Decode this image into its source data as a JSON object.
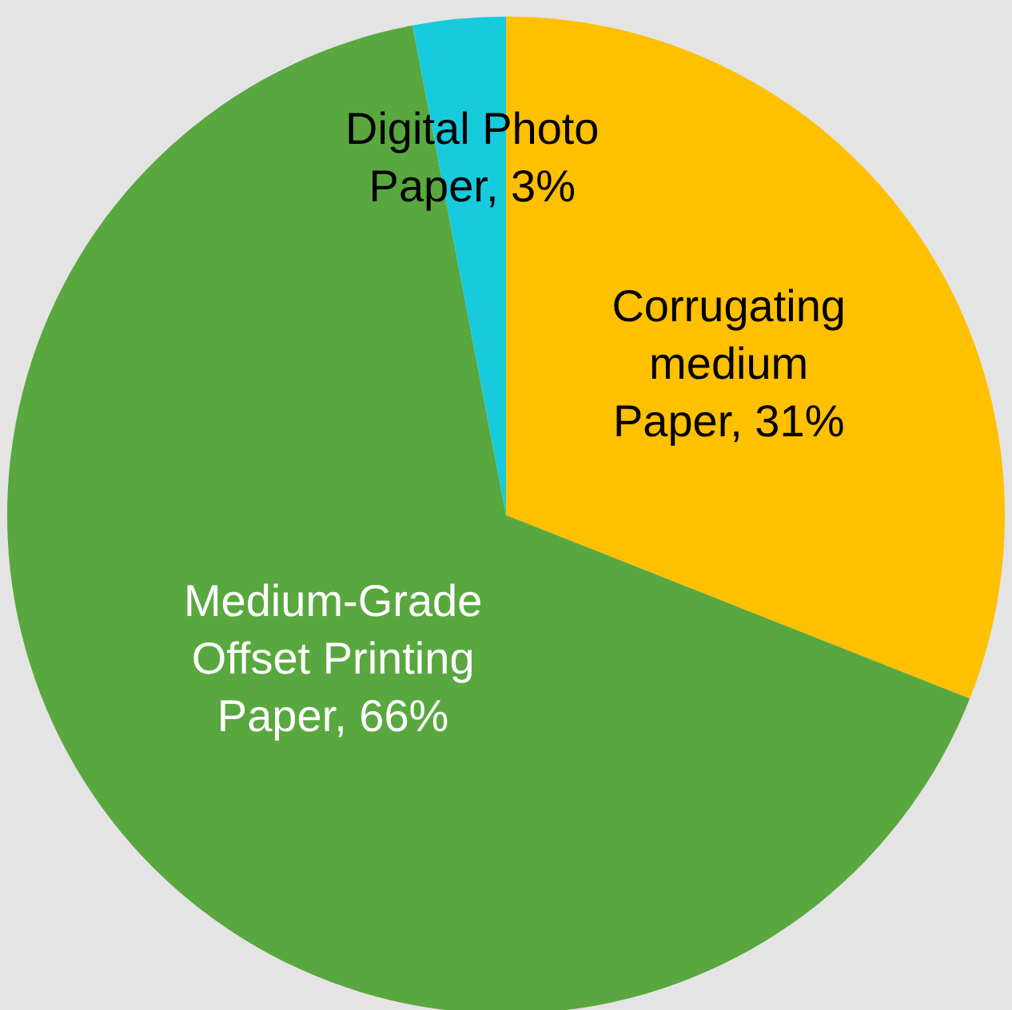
{
  "chart_data": {
    "type": "pie",
    "categories": [
      "Corrugating medium Paper",
      "Medium-Grade Offset Printing Paper",
      "Digital Photo Paper"
    ],
    "values": [
      31,
      66,
      3
    ],
    "colors": [
      "#ffc000",
      "#59a83f",
      "#17cbdc"
    ],
    "value_labels": [
      "31%",
      "66%",
      "3%"
    ]
  }
}
